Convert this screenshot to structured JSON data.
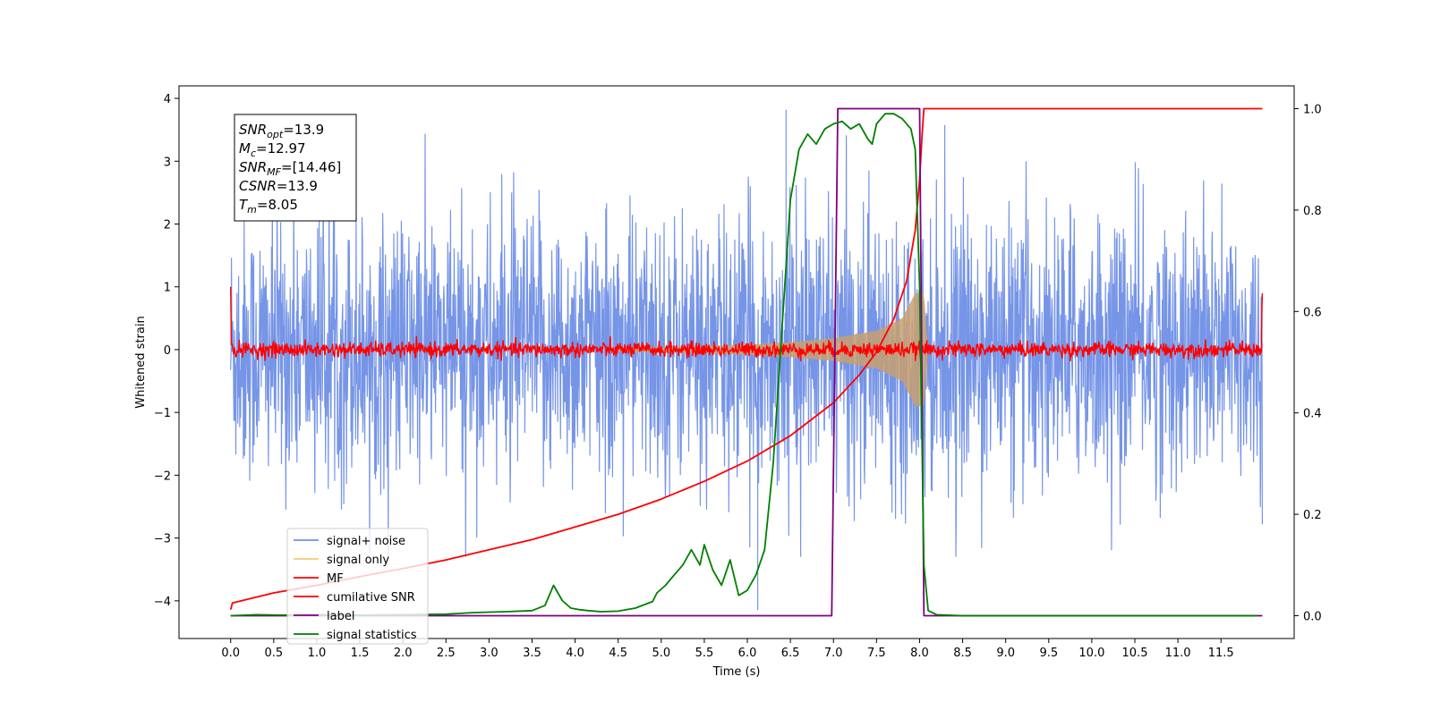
{
  "chart_data": {
    "type": "line",
    "xlabel": "Time (s)",
    "ylabel": "Whitened strain",
    "xlim": [
      -0.6,
      12.35
    ],
    "ylim": [
      -4.6,
      4.2
    ],
    "y2lim": [
      -0.045,
      1.045
    ],
    "x_ticks": [
      "0.0",
      "0.5",
      "1.0",
      "1.5",
      "2.0",
      "2.5",
      "3.0",
      "3.5",
      "4.0",
      "4.5",
      "5.0",
      "5.5",
      "6.0",
      "6.5",
      "7.0",
      "7.5",
      "8.0",
      "8.5",
      "9.0",
      "9.5",
      "10.0",
      "10.5",
      "11.0",
      "11.5"
    ],
    "x_tick_values": [
      0,
      0.5,
      1,
      1.5,
      2,
      2.5,
      3,
      3.5,
      4,
      4.5,
      5,
      5.5,
      6,
      6.5,
      7,
      7.5,
      8,
      8.5,
      9,
      9.5,
      10,
      10.5,
      11,
      11.5
    ],
    "y_ticks": [
      "−4",
      "−3",
      "−2",
      "−1",
      "0",
      "1",
      "2",
      "3",
      "4"
    ],
    "y_tick_values": [
      -4,
      -3,
      -2,
      -1,
      0,
      1,
      2,
      3,
      4
    ],
    "y2_ticks": [
      "0.0",
      "0.2",
      "0.4",
      "0.6",
      "0.8",
      "1.0"
    ],
    "y2_tick_values": [
      0,
      0.2,
      0.4,
      0.6,
      0.8,
      1.0
    ],
    "annotation": {
      "lines": [
        {
          "base": "SNR",
          "sub": "opt",
          "rest": "=13.9"
        },
        {
          "base": "M",
          "sub": "c",
          "rest": "=12.97"
        },
        {
          "base": "SNR",
          "sub": "MF",
          "rest": "=[14.46]"
        },
        {
          "base": "CSNR",
          "sub": "",
          "rest": "=13.9"
        },
        {
          "base": "T",
          "sub": "m",
          "rest": "=8.05"
        }
      ]
    },
    "legend": {
      "placement": "lower-left",
      "entries": [
        {
          "label": "signal+ noise",
          "color": "#6f8fe6"
        },
        {
          "label": "signal only",
          "color": "#f7c87a"
        },
        {
          "label": "MF",
          "color": "#ff0000"
        },
        {
          "label": "cumilative SNR",
          "color": "#ff0000"
        },
        {
          "label": "label",
          "color": "#800080"
        },
        {
          "label": "signal statistics",
          "color": "#008000"
        }
      ]
    },
    "series": [
      {
        "name": "signal+ noise",
        "axis": "left",
        "color": "#6f8fe6",
        "description_values": {
          "x_range": [
            0,
            11.98
          ],
          "noise_sigma": 1.0,
          "typical_peak": 3.5,
          "min": -4.15,
          "max": 3.82
        }
      },
      {
        "name": "signal only",
        "axis": "left",
        "color": "#c8a070",
        "chirp_envelope": {
          "x": [
            4.5,
            5.5,
            6.0,
            6.5,
            7.0,
            7.5,
            7.8,
            7.95,
            8.05,
            8.1
          ],
          "amp": [
            0.03,
            0.06,
            0.08,
            0.12,
            0.18,
            0.3,
            0.5,
            0.9,
            0.9,
            0.0
          ]
        }
      },
      {
        "name": "MF",
        "axis": "left",
        "color": "#ff0000",
        "description_values": {
          "x_range": [
            0,
            11.98
          ],
          "baseline": 0.0,
          "noise_sigma": 0.06,
          "start_value": 1.0,
          "end_value": 0.9
        }
      },
      {
        "name": "cumilative SNR",
        "axis": "right",
        "color": "#ff0000",
        "x": [
          0,
          0.02,
          0.5,
          1,
          1.5,
          2,
          2.5,
          3,
          3.5,
          4,
          4.5,
          5,
          5.5,
          6,
          6.5,
          7,
          7.3,
          7.5,
          7.7,
          7.85,
          7.95,
          8.0,
          8.03,
          8.05,
          8.1,
          9,
          10,
          11,
          11.98
        ],
        "y": [
          0.012,
          0.025,
          0.045,
          0.06,
          0.077,
          0.093,
          0.11,
          0.13,
          0.15,
          0.175,
          0.2,
          0.23,
          0.265,
          0.305,
          0.355,
          0.42,
          0.475,
          0.52,
          0.585,
          0.66,
          0.76,
          0.86,
          0.95,
          1.0,
          1.0,
          1.0,
          1.0,
          1.0,
          1.0
        ]
      },
      {
        "name": "label",
        "axis": "right",
        "color": "#800080",
        "x": [
          0,
          6.98,
          7.05,
          8.0,
          8.05,
          11.98
        ],
        "y": [
          0,
          0,
          1,
          1,
          0,
          0
        ]
      },
      {
        "name": "signal statistics",
        "axis": "right",
        "color": "#008000",
        "x": [
          0,
          0.3,
          0.6,
          1,
          1.5,
          2,
          2.5,
          2.8,
          3,
          3.2,
          3.5,
          3.65,
          3.75,
          3.85,
          3.95,
          4.05,
          4.15,
          4.3,
          4.5,
          4.7,
          4.9,
          4.95,
          5.05,
          5.15,
          5.25,
          5.35,
          5.45,
          5.5,
          5.6,
          5.7,
          5.8,
          5.9,
          6.0,
          6.1,
          6.2,
          6.3,
          6.4,
          6.5,
          6.6,
          6.7,
          6.8,
          6.9,
          7.0,
          7.1,
          7.2,
          7.3,
          7.4,
          7.45,
          7.5,
          7.6,
          7.7,
          7.8,
          7.9,
          7.95,
          8.0,
          8.05,
          8.1,
          8.2,
          8.5,
          9,
          10,
          11,
          11.92
        ],
        "y": [
          0,
          0.002,
          0.001,
          0.002,
          0.001,
          0.002,
          0.003,
          0.006,
          0.007,
          0.008,
          0.01,
          0.02,
          0.06,
          0.03,
          0.015,
          0.012,
          0.01,
          0.008,
          0.009,
          0.015,
          0.028,
          0.045,
          0.06,
          0.08,
          0.1,
          0.13,
          0.1,
          0.14,
          0.09,
          0.06,
          0.11,
          0.04,
          0.05,
          0.08,
          0.13,
          0.3,
          0.56,
          0.82,
          0.92,
          0.95,
          0.93,
          0.96,
          0.97,
          0.975,
          0.96,
          0.97,
          0.94,
          0.93,
          0.97,
          0.99,
          0.99,
          0.98,
          0.96,
          0.92,
          0.65,
          0.1,
          0.01,
          0.002,
          0.0,
          0.0,
          0.0,
          0.0,
          0.0
        ]
      }
    ]
  }
}
